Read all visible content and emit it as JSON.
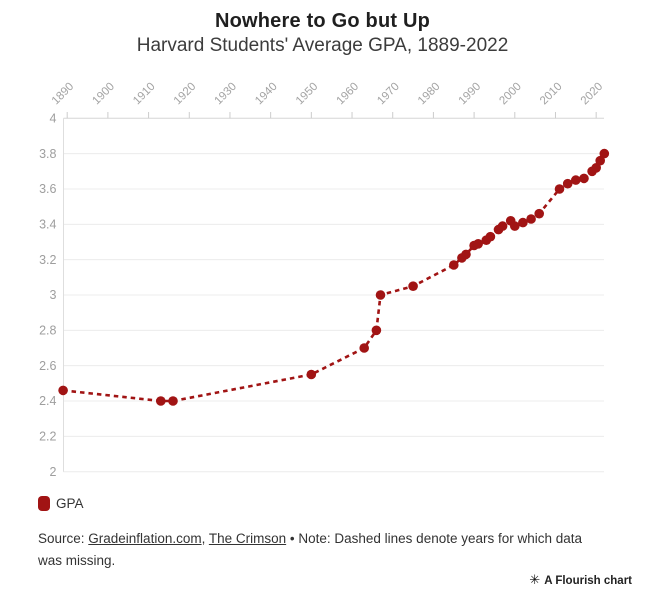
{
  "header": {
    "title": "Nowhere to Go but Up",
    "subtitle": "Harvard Students' Average GPA, 1889-2022"
  },
  "legend": {
    "label": "GPA",
    "swatch_color": "#a11414"
  },
  "footer": {
    "source_prefix": "Source: ",
    "source_link_1": "Gradeinflation.com",
    "source_separator": ", ",
    "source_link_2": "The Crimson",
    "note": " • Note: Dashed lines denote years for which data was missing."
  },
  "attribution": {
    "icon": "✳",
    "label": "A Flourish chart"
  },
  "chart_data": {
    "type": "line",
    "title": "Nowhere to Go but Up",
    "subtitle": "Harvard Students' Average GPA, 1889-2022",
    "line_style": "dashed",
    "marker": "circle",
    "grid": "horizontal-only",
    "legend_position": "bottom-left",
    "colors": {
      "series": "#a11414",
      "gridline": "#ececec",
      "axis_line": "#d6d6d6",
      "tick_label": "#a3a3a3"
    },
    "x_axis": {
      "position": "top",
      "label_rotation": -45,
      "range": [
        1888,
        2023
      ],
      "ticks": [
        1890,
        1900,
        1910,
        1920,
        1930,
        1940,
        1950,
        1960,
        1970,
        1980,
        1990,
        2000,
        2010,
        2020
      ]
    },
    "y_axis": {
      "range": [
        2,
        4
      ],
      "ticks": [
        4,
        3.8,
        3.6,
        3.4,
        3.2,
        3,
        2.8,
        2.6,
        2.4,
        2.2,
        2
      ],
      "tick_labels": [
        "4",
        "3.8",
        "3.6",
        "3.4",
        "3.2",
        "3",
        "2.8",
        "2.6",
        "2.4",
        "2.2",
        "2"
      ]
    },
    "series": [
      {
        "name": "GPA",
        "points": [
          {
            "year": 1889,
            "gpa": 2.46
          },
          {
            "year": 1913,
            "gpa": 2.4
          },
          {
            "year": 1916,
            "gpa": 2.4
          },
          {
            "year": 1950,
            "gpa": 2.55
          },
          {
            "year": 1963,
            "gpa": 2.7
          },
          {
            "year": 1966,
            "gpa": 2.8
          },
          {
            "year": 1967,
            "gpa": 3.0
          },
          {
            "year": 1975,
            "gpa": 3.05
          },
          {
            "year": 1985,
            "gpa": 3.17
          },
          {
            "year": 1987,
            "gpa": 3.21
          },
          {
            "year": 1988,
            "gpa": 3.23
          },
          {
            "year": 1990,
            "gpa": 3.28
          },
          {
            "year": 1991,
            "gpa": 3.29
          },
          {
            "year": 1993,
            "gpa": 3.31
          },
          {
            "year": 1994,
            "gpa": 3.33
          },
          {
            "year": 1996,
            "gpa": 3.37
          },
          {
            "year": 1997,
            "gpa": 3.39
          },
          {
            "year": 1999,
            "gpa": 3.42
          },
          {
            "year": 2000,
            "gpa": 3.39
          },
          {
            "year": 2002,
            "gpa": 3.41
          },
          {
            "year": 2004,
            "gpa": 3.43
          },
          {
            "year": 2006,
            "gpa": 3.46
          },
          {
            "year": 2011,
            "gpa": 3.6
          },
          {
            "year": 2013,
            "gpa": 3.63
          },
          {
            "year": 2015,
            "gpa": 3.65
          },
          {
            "year": 2017,
            "gpa": 3.66
          },
          {
            "year": 2019,
            "gpa": 3.7
          },
          {
            "year": 2020,
            "gpa": 3.72
          },
          {
            "year": 2021,
            "gpa": 3.76
          },
          {
            "year": 2022,
            "gpa": 3.8
          }
        ]
      }
    ],
    "note": "Dashed lines denote years for which data was missing."
  }
}
